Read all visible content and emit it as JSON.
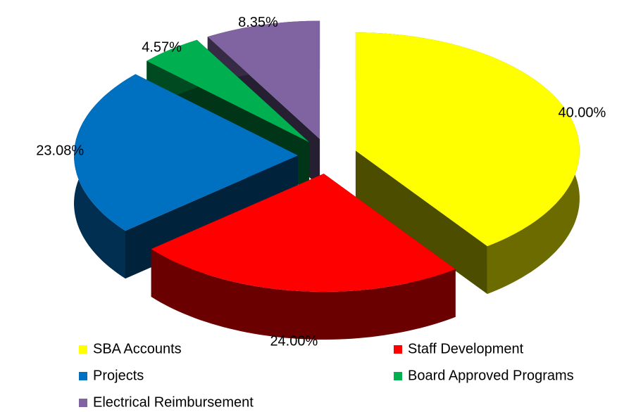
{
  "chart_data": {
    "type": "pie3d",
    "categories": [
      "SBA Accounts",
      "Staff Development",
      "Projects",
      "Board Approved Programs",
      "Electrical Reimbursement"
    ],
    "values": [
      40.0,
      24.0,
      23.08,
      4.57,
      8.35
    ],
    "value_labels": [
      "40.00%",
      "24.00%",
      "23.08%",
      "4.57%",
      "8.35%"
    ],
    "colors": [
      "#ffff00",
      "#ff0000",
      "#0070c0",
      "#00b050",
      "#8064a2"
    ],
    "legend": "bottom"
  }
}
